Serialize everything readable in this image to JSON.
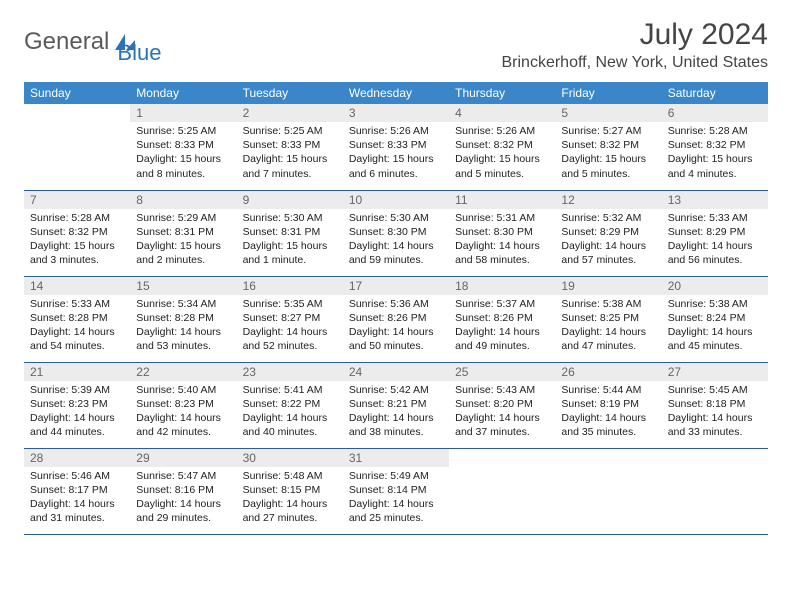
{
  "brand": {
    "part1": "General",
    "part2": "Blue"
  },
  "title": {
    "month": "July 2024",
    "location": "Brinckerhoff, New York, United States"
  },
  "colors": {
    "headerBlue": "#3a86c8",
    "rowLine": "#2b5f8f",
    "dayBg": "#ececec",
    "brandBlue": "#2b73b8"
  },
  "dayHeaders": [
    "Sunday",
    "Monday",
    "Tuesday",
    "Wednesday",
    "Thursday",
    "Friday",
    "Saturday"
  ],
  "firstWeekday": 1,
  "daysInMonth": 31,
  "days": {
    "1": {
      "sunrise": "5:25 AM",
      "sunset": "8:33 PM",
      "daylight": "15 hours and 8 minutes."
    },
    "2": {
      "sunrise": "5:25 AM",
      "sunset": "8:33 PM",
      "daylight": "15 hours and 7 minutes."
    },
    "3": {
      "sunrise": "5:26 AM",
      "sunset": "8:33 PM",
      "daylight": "15 hours and 6 minutes."
    },
    "4": {
      "sunrise": "5:26 AM",
      "sunset": "8:32 PM",
      "daylight": "15 hours and 5 minutes."
    },
    "5": {
      "sunrise": "5:27 AM",
      "sunset": "8:32 PM",
      "daylight": "15 hours and 5 minutes."
    },
    "6": {
      "sunrise": "5:28 AM",
      "sunset": "8:32 PM",
      "daylight": "15 hours and 4 minutes."
    },
    "7": {
      "sunrise": "5:28 AM",
      "sunset": "8:32 PM",
      "daylight": "15 hours and 3 minutes."
    },
    "8": {
      "sunrise": "5:29 AM",
      "sunset": "8:31 PM",
      "daylight": "15 hours and 2 minutes."
    },
    "9": {
      "sunrise": "5:30 AM",
      "sunset": "8:31 PM",
      "daylight": "15 hours and 1 minute."
    },
    "10": {
      "sunrise": "5:30 AM",
      "sunset": "8:30 PM",
      "daylight": "14 hours and 59 minutes."
    },
    "11": {
      "sunrise": "5:31 AM",
      "sunset": "8:30 PM",
      "daylight": "14 hours and 58 minutes."
    },
    "12": {
      "sunrise": "5:32 AM",
      "sunset": "8:29 PM",
      "daylight": "14 hours and 57 minutes."
    },
    "13": {
      "sunrise": "5:33 AM",
      "sunset": "8:29 PM",
      "daylight": "14 hours and 56 minutes."
    },
    "14": {
      "sunrise": "5:33 AM",
      "sunset": "8:28 PM",
      "daylight": "14 hours and 54 minutes."
    },
    "15": {
      "sunrise": "5:34 AM",
      "sunset": "8:28 PM",
      "daylight": "14 hours and 53 minutes."
    },
    "16": {
      "sunrise": "5:35 AM",
      "sunset": "8:27 PM",
      "daylight": "14 hours and 52 minutes."
    },
    "17": {
      "sunrise": "5:36 AM",
      "sunset": "8:26 PM",
      "daylight": "14 hours and 50 minutes."
    },
    "18": {
      "sunrise": "5:37 AM",
      "sunset": "8:26 PM",
      "daylight": "14 hours and 49 minutes."
    },
    "19": {
      "sunrise": "5:38 AM",
      "sunset": "8:25 PM",
      "daylight": "14 hours and 47 minutes."
    },
    "20": {
      "sunrise": "5:38 AM",
      "sunset": "8:24 PM",
      "daylight": "14 hours and 45 minutes."
    },
    "21": {
      "sunrise": "5:39 AM",
      "sunset": "8:23 PM",
      "daylight": "14 hours and 44 minutes."
    },
    "22": {
      "sunrise": "5:40 AM",
      "sunset": "8:23 PM",
      "daylight": "14 hours and 42 minutes."
    },
    "23": {
      "sunrise": "5:41 AM",
      "sunset": "8:22 PM",
      "daylight": "14 hours and 40 minutes."
    },
    "24": {
      "sunrise": "5:42 AM",
      "sunset": "8:21 PM",
      "daylight": "14 hours and 38 minutes."
    },
    "25": {
      "sunrise": "5:43 AM",
      "sunset": "8:20 PM",
      "daylight": "14 hours and 37 minutes."
    },
    "26": {
      "sunrise": "5:44 AM",
      "sunset": "8:19 PM",
      "daylight": "14 hours and 35 minutes."
    },
    "27": {
      "sunrise": "5:45 AM",
      "sunset": "8:18 PM",
      "daylight": "14 hours and 33 minutes."
    },
    "28": {
      "sunrise": "5:46 AM",
      "sunset": "8:17 PM",
      "daylight": "14 hours and 31 minutes."
    },
    "29": {
      "sunrise": "5:47 AM",
      "sunset": "8:16 PM",
      "daylight": "14 hours and 29 minutes."
    },
    "30": {
      "sunrise": "5:48 AM",
      "sunset": "8:15 PM",
      "daylight": "14 hours and 27 minutes."
    },
    "31": {
      "sunrise": "5:49 AM",
      "sunset": "8:14 PM",
      "daylight": "14 hours and 25 minutes."
    }
  },
  "labels": {
    "sunrise": "Sunrise:",
    "sunset": "Sunset:",
    "daylight": "Daylight:"
  }
}
